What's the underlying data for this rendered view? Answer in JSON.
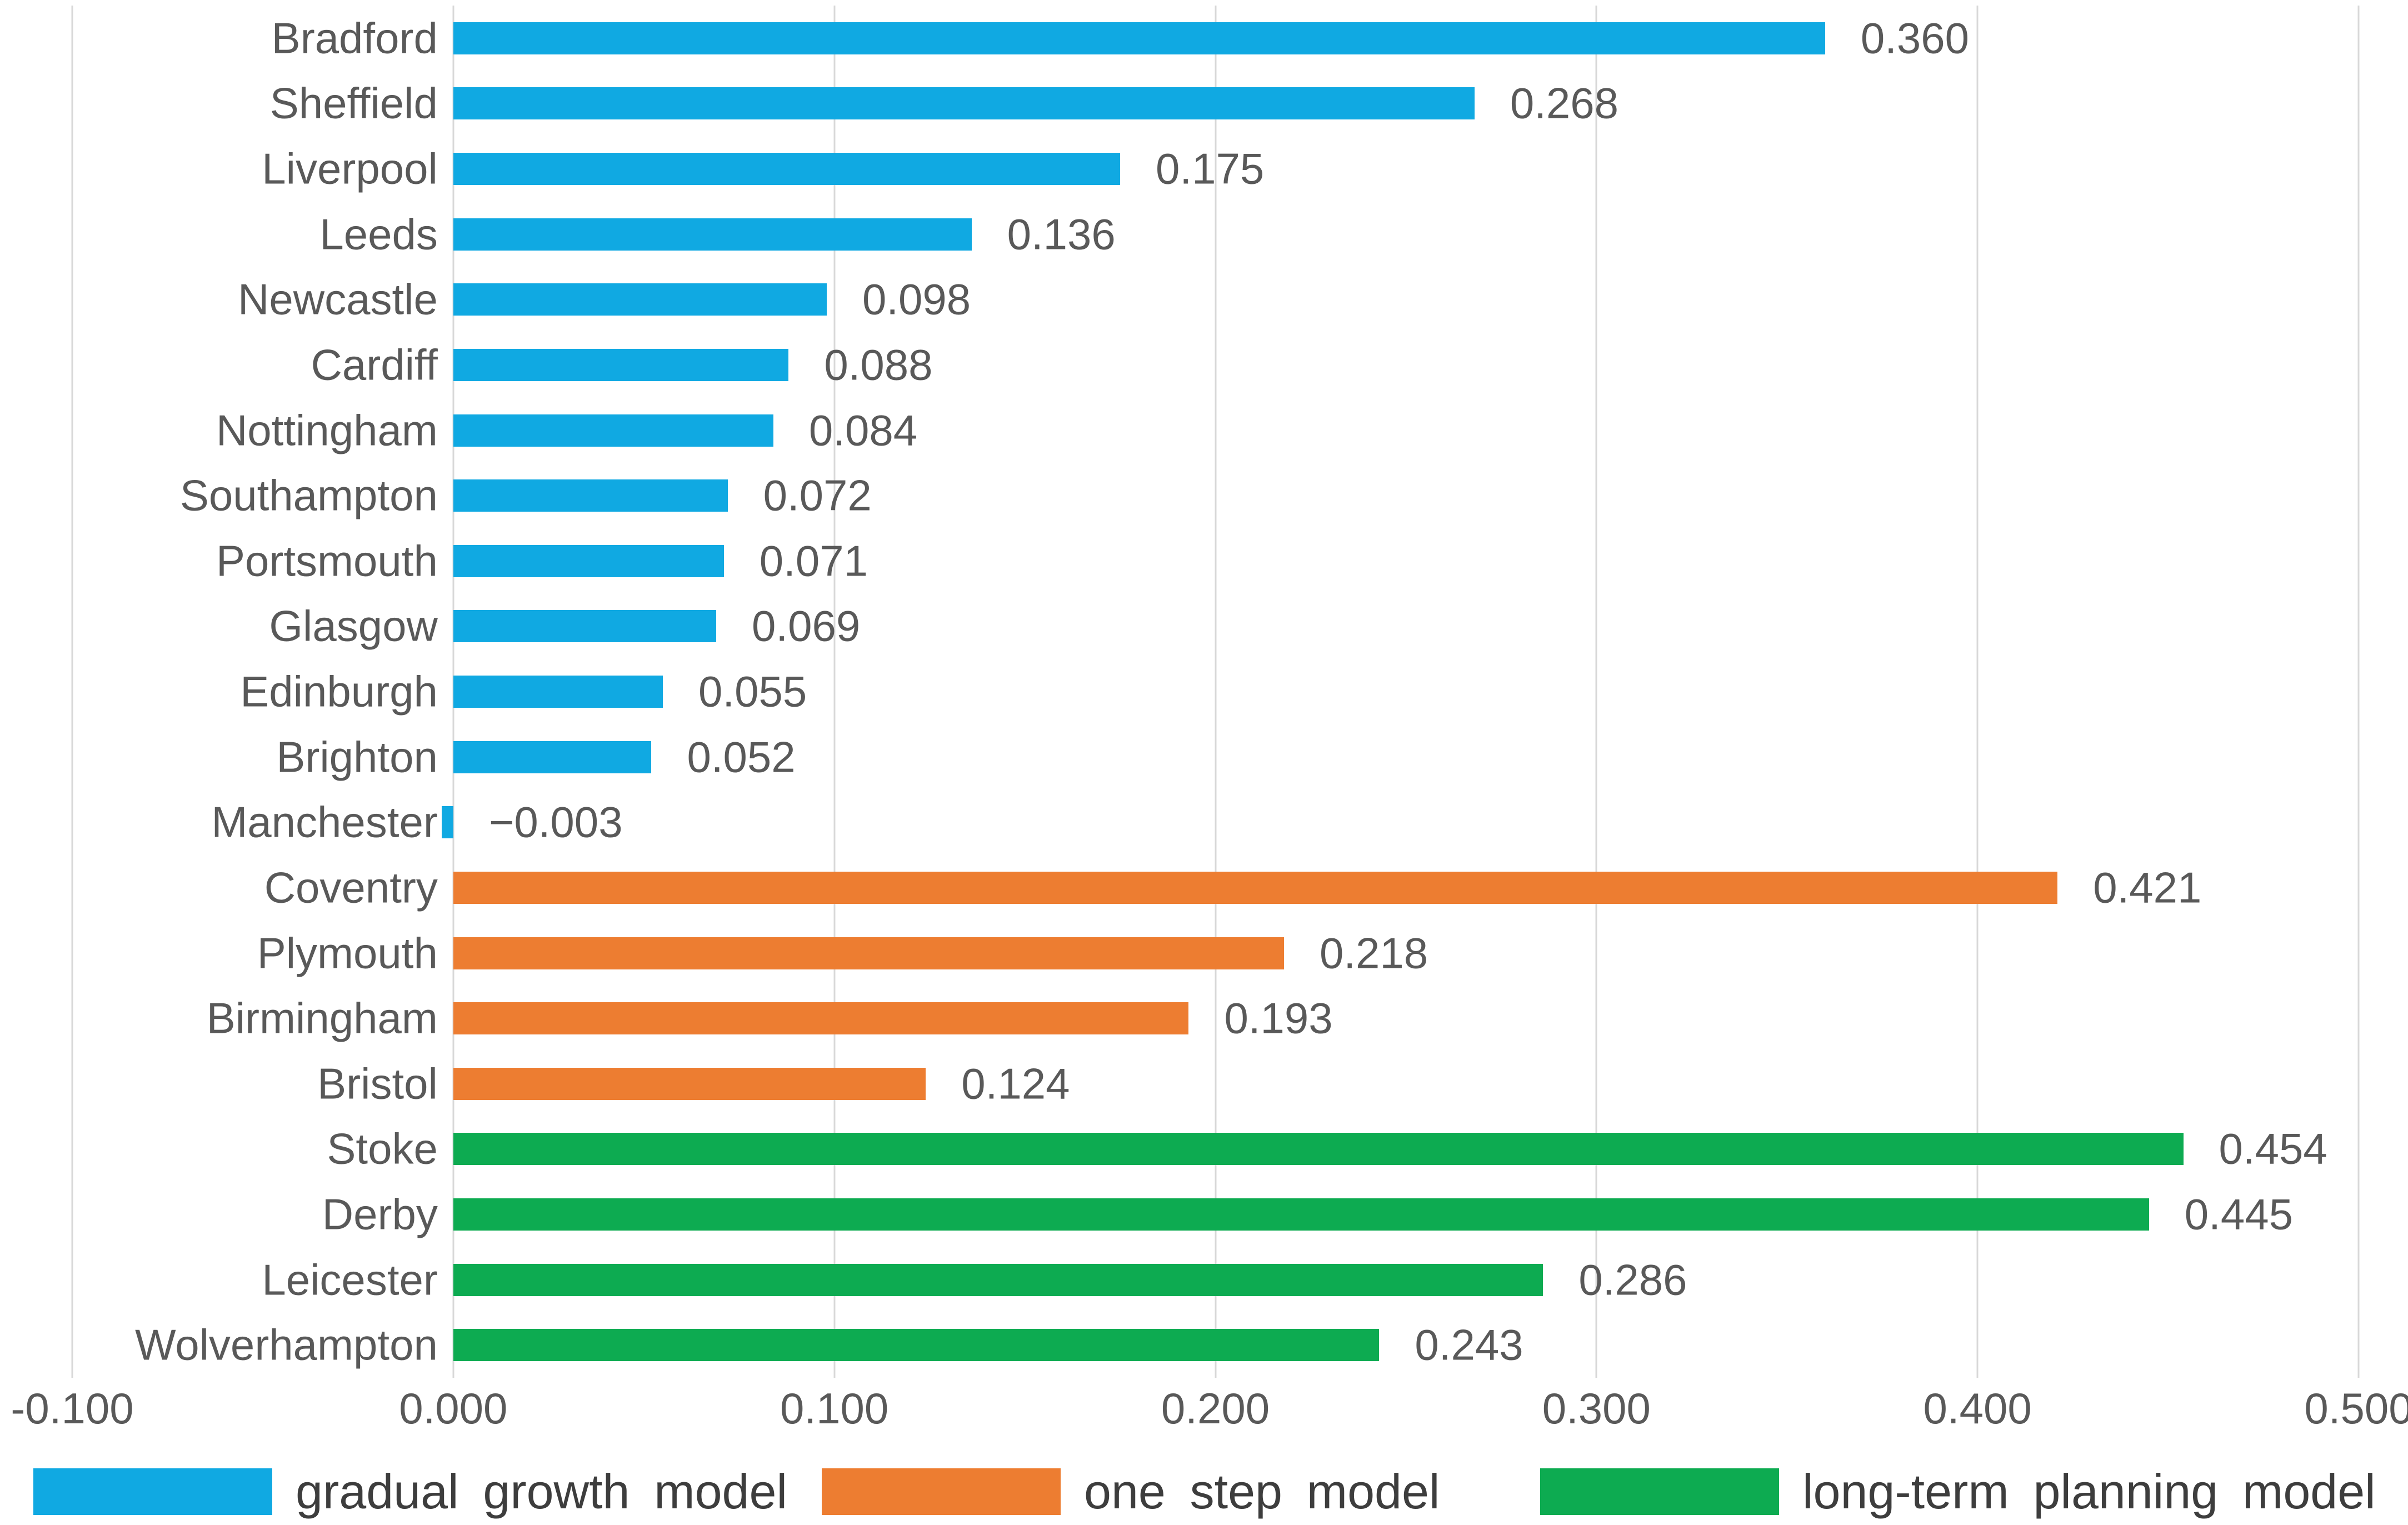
{
  "chart_data": {
    "type": "bar",
    "orientation": "horizontal",
    "title": "",
    "xlabel": "",
    "ylabel": "",
    "grid": true,
    "x_axis": {
      "min": -0.1,
      "max": 0.5,
      "tick_values": [
        -0.1,
        0.0,
        0.1,
        0.2,
        0.3,
        0.4,
        0.5
      ],
      "tick_labels": [
        "-0.100",
        "0.000",
        "0.100",
        "0.200",
        "0.300",
        "0.400",
        "0.500"
      ]
    },
    "legend": {
      "position": "bottom"
    },
    "series": [
      {
        "name": "gradual growth model",
        "color": "#10a9e2",
        "bars": [
          {
            "category": "Bradford",
            "value": 0.36,
            "value_label": "0.360"
          },
          {
            "category": "Sheffield",
            "value": 0.268,
            "value_label": "0.268"
          },
          {
            "category": "Liverpool",
            "value": 0.175,
            "value_label": "0.175"
          },
          {
            "category": "Leeds",
            "value": 0.136,
            "value_label": "0.136"
          },
          {
            "category": "Newcastle",
            "value": 0.098,
            "value_label": "0.098"
          },
          {
            "category": "Cardiff",
            "value": 0.088,
            "value_label": "0.088"
          },
          {
            "category": "Nottingham",
            "value": 0.084,
            "value_label": "0.084"
          },
          {
            "category": "Southampton",
            "value": 0.072,
            "value_label": "0.072"
          },
          {
            "category": "Portsmouth",
            "value": 0.071,
            "value_label": "0.071"
          },
          {
            "category": "Glasgow",
            "value": 0.069,
            "value_label": "0.069"
          },
          {
            "category": "Edinburgh",
            "value": 0.055,
            "value_label": "0.055"
          },
          {
            "category": "Brighton",
            "value": 0.052,
            "value_label": "0.052"
          },
          {
            "category": "Manchester",
            "value": -0.003,
            "value_label": "−0.003"
          }
        ]
      },
      {
        "name": "one step model",
        "color": "#ed7d31",
        "bars": [
          {
            "category": "Coventry",
            "value": 0.421,
            "value_label": "0.421"
          },
          {
            "category": "Plymouth",
            "value": 0.218,
            "value_label": "0.218"
          },
          {
            "category": "Birmingham",
            "value": 0.193,
            "value_label": "0.193"
          },
          {
            "category": "Bristol",
            "value": 0.124,
            "value_label": "0.124"
          }
        ]
      },
      {
        "name": "long-term planning model",
        "color": "#0dab51",
        "bars": [
          {
            "category": "Stoke",
            "value": 0.454,
            "value_label": "0.454"
          },
          {
            "category": "Derby",
            "value": 0.445,
            "value_label": "0.445"
          },
          {
            "category": "Leicester",
            "value": 0.286,
            "value_label": "0.286"
          },
          {
            "category": "Wolverhampton",
            "value": 0.243,
            "value_label": "0.243"
          }
        ]
      }
    ],
    "style": {
      "gridline_color": "#d8d8d8",
      "text_color": "#595959",
      "legend_text_color": "#3d3d3d",
      "background": "#ffffff"
    }
  }
}
